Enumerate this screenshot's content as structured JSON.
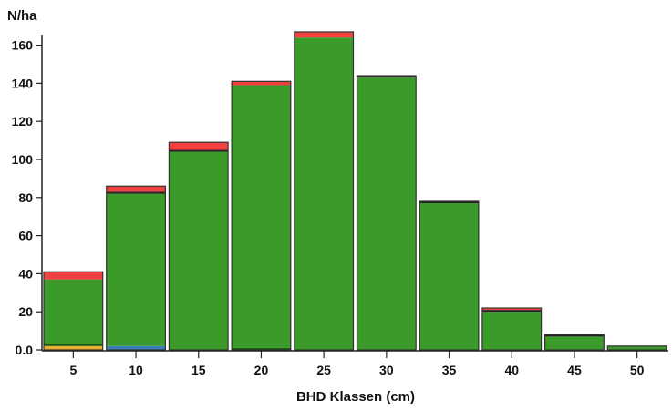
{
  "chart_data": {
    "type": "bar",
    "stacked": true,
    "title": "",
    "ylabel": "N/ha",
    "xlabel": "BHD Klassen (cm)",
    "ylim": [
      0,
      165
    ],
    "yticks": [
      "0.0",
      "20",
      "40",
      "60",
      "80",
      "100",
      "120",
      "140",
      "160"
    ],
    "categories": [
      "5",
      "10",
      "15",
      "20",
      "25",
      "30",
      "35",
      "40",
      "45",
      "50"
    ],
    "grid": false,
    "legend": "none",
    "series": [
      {
        "color": "#e8b030",
        "values": [
          2,
          0,
          0,
          0,
          0,
          0,
          0,
          0,
          0,
          0
        ]
      },
      {
        "color": "#3a7fb8",
        "values": [
          0,
          2,
          0,
          0,
          0,
          0,
          0,
          0,
          0,
          0
        ]
      },
      {
        "color": "#1a5a10",
        "values": [
          1,
          0,
          0,
          1,
          0,
          0,
          0,
          0,
          0,
          0
        ]
      },
      {
        "color": "#3a9a2a",
        "values": [
          34,
          80,
          104,
          138,
          164,
          143,
          77,
          20,
          7,
          2
        ]
      },
      {
        "color": "#222222",
        "values": [
          0,
          1,
          1,
          0,
          0,
          1,
          1,
          1,
          1,
          0
        ]
      },
      {
        "color": "#f04040",
        "values": [
          4,
          3,
          4,
          2,
          3,
          0,
          0,
          1,
          0,
          0
        ]
      }
    ]
  }
}
